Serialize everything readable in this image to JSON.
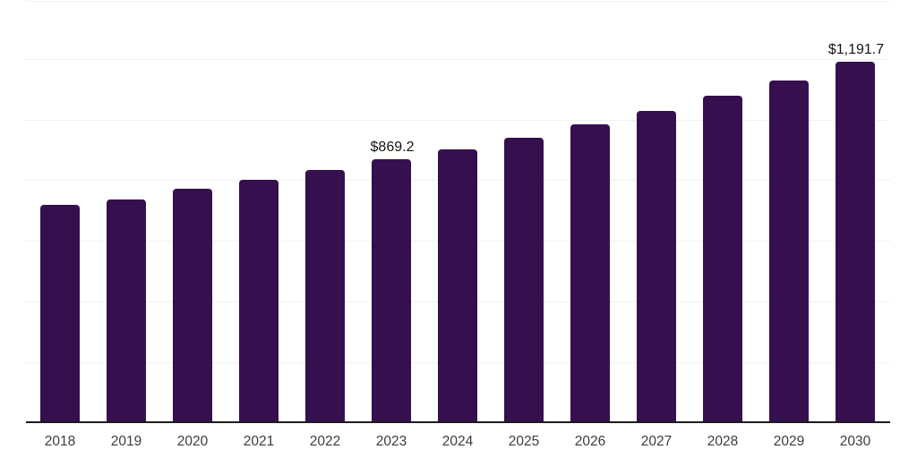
{
  "chart_data": {
    "type": "bar",
    "title": "",
    "xlabel": "",
    "ylabel": "",
    "categories": [
      "2018",
      "2019",
      "2020",
      "2021",
      "2022",
      "2023",
      "2024",
      "2025",
      "2026",
      "2027",
      "2028",
      "2029",
      "2030"
    ],
    "values": [
      720,
      738,
      773,
      800,
      834,
      869.2,
      902,
      941,
      984,
      1027,
      1077,
      1129,
      1191.7
    ],
    "data_labels": [
      {
        "category": "2023",
        "text": "$869.2"
      },
      {
        "category": "2030",
        "text": "$1,191.7"
      }
    ],
    "ylim": [
      0,
      1400
    ],
    "ytick_step": 200,
    "grid": "horizontal-gridlines-only, no y-axis tick labels",
    "legend_position": "none",
    "colors": {
      "bar": "#36104E",
      "gridline": "#f1f1f1",
      "axis_line": "#1c1c1c",
      "tick_label": "#3d3d3d",
      "data_label": "#141414",
      "background": "#ffffff"
    }
  }
}
